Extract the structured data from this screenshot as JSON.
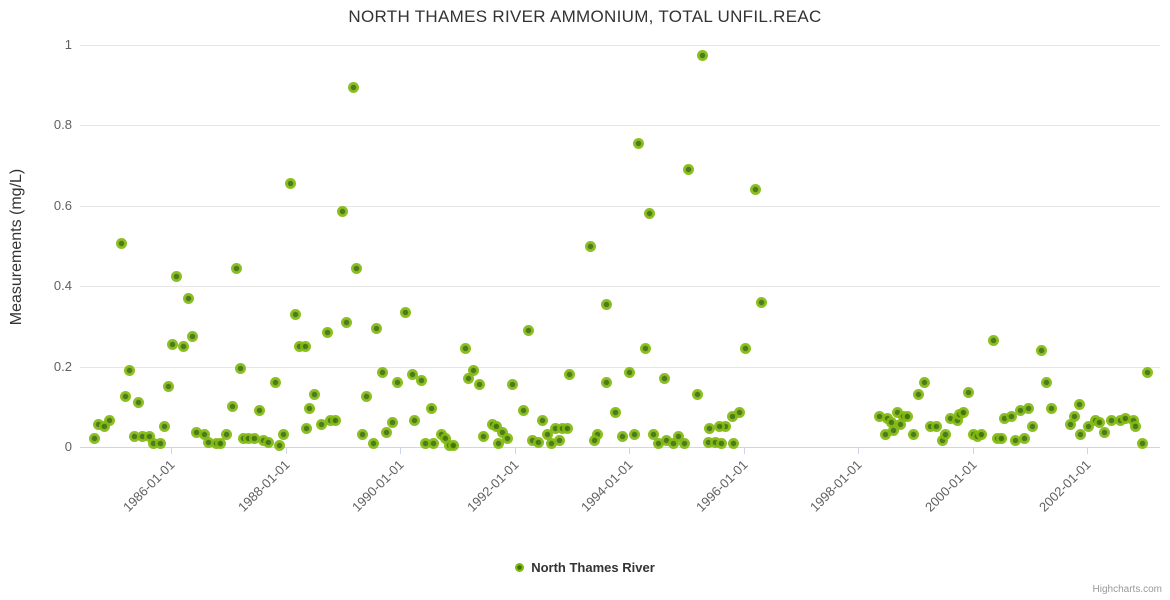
{
  "title": "NORTH THAMES RIVER AMMONIUM, TOTAL UNFIL.REAC",
  "legend": {
    "label": "North Thames River"
  },
  "credit": "Highcharts.com",
  "colors": {
    "marker_outer": "#82b90e",
    "marker_inner": "#3d7007",
    "gridline": "#e6e6e6",
    "axis_line": "#ccd6eb",
    "tick_label": "#606060",
    "title_text": "#333333"
  },
  "chart_data": {
    "type": "scatter",
    "title": "NORTH THAMES RIVER AMMONIUM, TOTAL UNFIL.REAC",
    "xlabel": "",
    "ylabel": "Measurements (mg/L)",
    "xlim": [
      1984.41,
      2003.27
    ],
    "ylim": [
      0,
      1
    ],
    "grid": true,
    "legend_position": "bottom-center",
    "yticks": [
      {
        "value": 0,
        "label": "0"
      },
      {
        "value": 0.2,
        "label": "0.2"
      },
      {
        "value": 0.4,
        "label": "0.4"
      },
      {
        "value": 0.6,
        "label": "0.6"
      },
      {
        "value": 0.8,
        "label": "0.8"
      },
      {
        "value": 1,
        "label": "1"
      }
    ],
    "xticks": [
      {
        "year": 1986,
        "label": "1986-01-01"
      },
      {
        "year": 1988,
        "label": "1988-01-01"
      },
      {
        "year": 1990,
        "label": "1990-01-01"
      },
      {
        "year": 1992,
        "label": "1992-01-01"
      },
      {
        "year": 1994,
        "label": "1994-01-01"
      },
      {
        "year": 1996,
        "label": "1996-01-01"
      },
      {
        "year": 1998,
        "label": "1998-01-01"
      },
      {
        "year": 2000,
        "label": "2000-01-01"
      },
      {
        "year": 2002,
        "label": "2002-01-01"
      }
    ],
    "series": [
      {
        "name": "North Thames River",
        "points": [
          [
            1985.13,
            0.505
          ],
          [
            1988.08,
            0.655
          ],
          [
            1989.0,
            0.585
          ],
          [
            1989.18,
            0.895
          ],
          [
            1993.32,
            0.5
          ],
          [
            1995.28,
            0.975
          ],
          [
            1994.17,
            0.755
          ],
          [
            1995.03,
            0.69
          ],
          [
            1996.2,
            0.64
          ],
          [
            1994.35,
            0.58
          ],
          [
            1986.1,
            0.425
          ],
          [
            1987.14,
            0.445
          ],
          [
            1989.23,
            0.445
          ],
          [
            1986.3,
            0.37
          ],
          [
            1988.17,
            0.33
          ],
          [
            1989.07,
            0.31
          ],
          [
            1986.37,
            0.275
          ],
          [
            1988.74,
            0.285
          ],
          [
            1986.02,
            0.255
          ],
          [
            1986.21,
            0.25
          ],
          [
            1988.24,
            0.25
          ],
          [
            1988.34,
            0.25
          ],
          [
            1990.1,
            0.335
          ],
          [
            1989.58,
            0.295
          ],
          [
            1993.6,
            0.355
          ],
          [
            1992.24,
            0.29
          ],
          [
            1991.14,
            0.245
          ],
          [
            1996.31,
            0.36
          ],
          [
            1994.28,
            0.245
          ],
          [
            1996.04,
            0.245
          ],
          [
            2000.37,
            0.265
          ],
          [
            2001.2,
            0.24
          ],
          [
            1985.27,
            0.19
          ],
          [
            1987.22,
            0.195
          ],
          [
            1985.95,
            0.15
          ],
          [
            1987.83,
            0.16
          ],
          [
            1985.21,
            0.125
          ],
          [
            1985.44,
            0.11
          ],
          [
            1987.07,
            0.1
          ],
          [
            1987.55,
            0.09
          ],
          [
            1988.5,
            0.13
          ],
          [
            1988.41,
            0.095
          ],
          [
            1984.92,
            0.065
          ],
          [
            1984.74,
            0.055
          ],
          [
            1984.83,
            0.05
          ],
          [
            1985.88,
            0.052
          ],
          [
            1984.66,
            0.022
          ],
          [
            1985.37,
            0.027
          ],
          [
            1985.51,
            0.027
          ],
          [
            1985.63,
            0.027
          ],
          [
            1985.69,
            0.008
          ],
          [
            1985.81,
            0.008
          ],
          [
            1986.44,
            0.037
          ],
          [
            1986.58,
            0.032
          ],
          [
            1986.65,
            0.012
          ],
          [
            1986.79,
            0.008
          ],
          [
            1986.87,
            0.008
          ],
          [
            1986.96,
            0.032
          ],
          [
            1987.26,
            0.02
          ],
          [
            1987.36,
            0.02
          ],
          [
            1987.45,
            0.02
          ],
          [
            1987.62,
            0.015
          ],
          [
            1987.71,
            0.01
          ],
          [
            1987.89,
            0.003
          ],
          [
            1987.96,
            0.03
          ],
          [
            1988.36,
            0.045
          ],
          [
            1988.62,
            0.055
          ],
          [
            1988.79,
            0.065
          ],
          [
            1988.88,
            0.065
          ],
          [
            1989.7,
            0.185
          ],
          [
            1989.95,
            0.16
          ],
          [
            1990.21,
            0.18
          ],
          [
            1990.37,
            0.165
          ],
          [
            1989.41,
            0.125
          ],
          [
            1991.29,
            0.19
          ],
          [
            1991.19,
            0.17
          ],
          [
            1991.38,
            0.155
          ],
          [
            1991.96,
            0.155
          ],
          [
            1990.54,
            0.095
          ],
          [
            1989.86,
            0.062
          ],
          [
            1990.26,
            0.065
          ],
          [
            1989.76,
            0.035
          ],
          [
            1989.35,
            0.03
          ],
          [
            1989.53,
            0.008
          ],
          [
            1990.73,
            0.032
          ],
          [
            1990.8,
            0.02
          ],
          [
            1990.44,
            0.008
          ],
          [
            1990.58,
            0.008
          ],
          [
            1990.86,
            0.003
          ],
          [
            1990.94,
            0.003
          ],
          [
            1992.15,
            0.09
          ],
          [
            1991.61,
            0.057
          ],
          [
            1991.69,
            0.052
          ],
          [
            1991.45,
            0.025
          ],
          [
            1991.78,
            0.037
          ],
          [
            1991.87,
            0.022
          ],
          [
            1991.71,
            0.008
          ],
          [
            1992.48,
            0.067
          ],
          [
            1992.31,
            0.015
          ],
          [
            1992.41,
            0.012
          ],
          [
            1992.57,
            0.03
          ],
          [
            1992.65,
            0.008
          ],
          [
            1992.72,
            0.045
          ],
          [
            1992.83,
            0.045
          ],
          [
            1992.79,
            0.015
          ],
          [
            1992.93,
            0.047
          ],
          [
            1992.95,
            0.18
          ],
          [
            1993.44,
            0.032
          ],
          [
            1993.39,
            0.017
          ],
          [
            1993.6,
            0.16
          ],
          [
            1993.76,
            0.085
          ],
          [
            1994.0,
            0.185
          ],
          [
            1994.1,
            0.032
          ],
          [
            1993.88,
            0.025
          ],
          [
            1994.61,
            0.17
          ],
          [
            1995.19,
            0.13
          ],
          [
            1995.92,
            0.087
          ],
          [
            1995.8,
            0.077
          ],
          [
            1995.69,
            0.052
          ],
          [
            1995.41,
            0.047
          ],
          [
            1995.57,
            0.052
          ],
          [
            1994.42,
            0.03
          ],
          [
            1994.51,
            0.008
          ],
          [
            1994.66,
            0.015
          ],
          [
            1994.77,
            0.008
          ],
          [
            1994.86,
            0.027
          ],
          [
            1994.96,
            0.008
          ],
          [
            1995.38,
            0.01
          ],
          [
            1995.5,
            0.01
          ],
          [
            1995.62,
            0.008
          ],
          [
            1995.83,
            0.008
          ],
          [
            1998.38,
            0.077
          ],
          [
            1998.51,
            0.072
          ],
          [
            1998.58,
            0.062
          ],
          [
            1998.68,
            0.087
          ],
          [
            1998.79,
            0.075
          ],
          [
            1998.86,
            0.075
          ],
          [
            1998.47,
            0.03
          ],
          [
            1998.61,
            0.042
          ],
          [
            1998.73,
            0.055
          ],
          [
            1998.96,
            0.03
          ],
          [
            1999.06,
            0.13
          ],
          [
            1999.15,
            0.16
          ],
          [
            1999.27,
            0.052
          ],
          [
            1999.36,
            0.052
          ],
          [
            1999.47,
            0.017
          ],
          [
            1999.52,
            0.03
          ],
          [
            1999.62,
            0.072
          ],
          [
            1999.73,
            0.065
          ],
          [
            1999.76,
            0.082
          ],
          [
            1999.83,
            0.087
          ],
          [
            1999.92,
            0.135
          ],
          [
            2000.02,
            0.03
          ],
          [
            2000.09,
            0.025
          ],
          [
            2000.15,
            0.032
          ],
          [
            2000.43,
            0.022
          ],
          [
            2000.51,
            0.022
          ],
          [
            2000.56,
            0.07
          ],
          [
            2000.67,
            0.075
          ],
          [
            2000.74,
            0.017
          ],
          [
            2000.84,
            0.092
          ],
          [
            2000.9,
            0.022
          ],
          [
            2000.97,
            0.097
          ],
          [
            2001.04,
            0.052
          ],
          [
            2001.28,
            0.16
          ],
          [
            2001.37,
            0.095
          ],
          [
            2001.7,
            0.055
          ],
          [
            2001.77,
            0.075
          ],
          [
            2001.86,
            0.105
          ],
          [
            2001.88,
            0.03
          ],
          [
            2002.03,
            0.052
          ],
          [
            2002.14,
            0.065
          ],
          [
            2002.21,
            0.062
          ],
          [
            2002.3,
            0.037
          ],
          [
            2002.42,
            0.065
          ],
          [
            2002.58,
            0.065
          ],
          [
            2002.66,
            0.07
          ],
          [
            2002.8,
            0.065
          ],
          [
            2002.85,
            0.05
          ],
          [
            2003.06,
            0.185
          ],
          [
            2002.96,
            0.008
          ]
        ]
      }
    ]
  }
}
